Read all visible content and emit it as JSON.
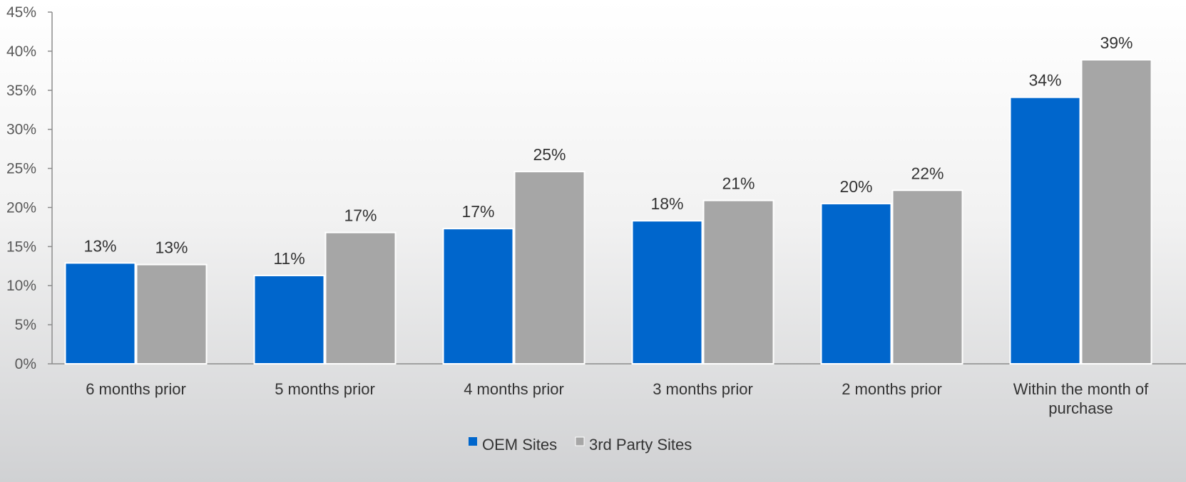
{
  "chart_data": {
    "type": "bar",
    "categories": [
      "6 months prior",
      "5 months prior",
      "4 months prior",
      "3 months prior",
      "2 months prior",
      "Within the month of purchase"
    ],
    "series": [
      {
        "name": "OEM Sites",
        "values": [
          0.129,
          0.113,
          0.173,
          0.183,
          0.205,
          0.341
        ],
        "labels": [
          "13%",
          "11%",
          "17%",
          "18%",
          "20%",
          "34%"
        ],
        "color": "#0066CC"
      },
      {
        "name": "3rd Party Sites",
        "values": [
          0.127,
          0.168,
          0.246,
          0.209,
          0.222,
          0.389
        ],
        "labels": [
          "13%",
          "17%",
          "25%",
          "21%",
          "22%",
          "39%"
        ],
        "color": "#A6A6A6"
      }
    ],
    "y_ticks": [
      "0%",
      "5%",
      "10%",
      "15%",
      "20%",
      "25%",
      "30%",
      "35%",
      "40%",
      "45%"
    ],
    "ylim": [
      0,
      0.45
    ],
    "title": "",
    "xlabel": "",
    "ylabel": "",
    "grid": false,
    "legend_position": "bottom-center"
  }
}
